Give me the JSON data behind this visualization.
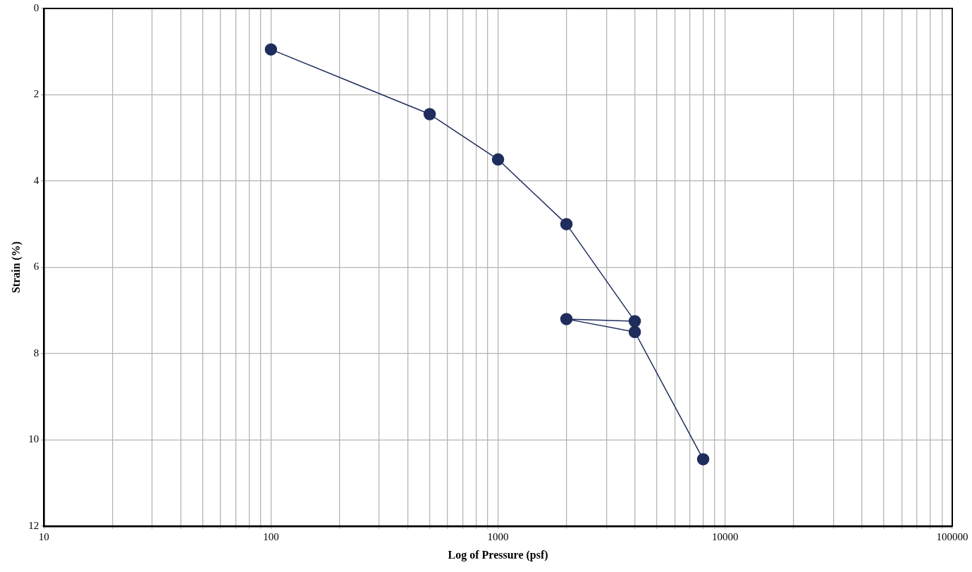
{
  "chart_data": {
    "type": "line",
    "xlabel": "Log of Pressure (psf)",
    "ylabel": "Strain (%)",
    "log": "x",
    "x": [
      100,
      500,
      1000,
      2000,
      4000,
      2000,
      4000,
      8000
    ],
    "series": [
      {
        "color": "#1f2d5c",
        "values": [
          0.95,
          2.45,
          3.5,
          5.0,
          7.25,
          7.2,
          7.5,
          10.45
        ]
      }
    ],
    "xlim": [
      10,
      100000
    ],
    "xticks": [
      10,
      {
        "value": 20,
        "label": null
      },
      {
        "value": 30,
        "label": null
      },
      {
        "value": 40,
        "label": null
      },
      {
        "value": 50,
        "label": null
      },
      {
        "value": 60,
        "label": null
      },
      {
        "value": 70,
        "label": null
      },
      {
        "value": 80,
        "label": null
      },
      {
        "value": 90,
        "label": null
      },
      100,
      {
        "value": 200,
        "label": null
      },
      {
        "value": 300,
        "label": null
      },
      {
        "value": 400,
        "label": null
      },
      {
        "value": 500,
        "label": null
      },
      {
        "value": 600,
        "label": null
      },
      {
        "value": 700,
        "label": null
      },
      {
        "value": 800,
        "label": null
      },
      {
        "value": 900,
        "label": null
      },
      1000,
      {
        "value": 2000,
        "label": null
      },
      {
        "value": 3000,
        "label": null
      },
      {
        "value": 4000,
        "label": null
      },
      {
        "value": 5000,
        "label": null
      },
      {
        "value": 6000,
        "label": null
      },
      {
        "value": 7000,
        "label": null
      },
      {
        "value": 8000,
        "label": null
      },
      {
        "value": 9000,
        "label": null
      },
      10000,
      {
        "value": 20000,
        "label": null
      },
      {
        "value": 30000,
        "label": null
      },
      {
        "value": 40000,
        "label": null
      },
      {
        "value": 50000,
        "label": null
      },
      {
        "value": 60000,
        "label": null
      },
      {
        "value": 70000,
        "label": null
      },
      {
        "value": 80000,
        "label": null
      },
      {
        "value": 90000,
        "label": null
      },
      100000
    ],
    "ylim": [
      12,
      0
    ],
    "yticks": [
      0,
      2,
      4,
      6,
      8,
      10,
      12
    ],
    "grid": true,
    "legend": false,
    "marker": "circle",
    "line_style": "solid"
  }
}
